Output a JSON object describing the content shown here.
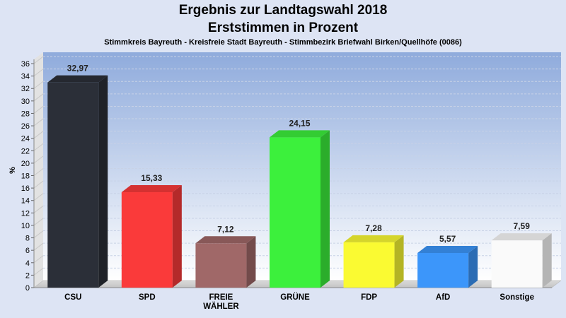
{
  "chart_data": {
    "type": "bar",
    "title": "Ergebnis zur Landtagswahl 2018",
    "subtitle": "Erststimmen in Prozent",
    "caption": "Stimmkreis Bayreuth - Kreisfreie Stadt Bayreuth - Stimmbezirk Briefwahl Birken/Quellhöfe (0086)",
    "ylabel": "%",
    "ylim": [
      0,
      36
    ],
    "yticks": [
      0,
      2,
      4,
      6,
      8,
      10,
      12,
      14,
      16,
      18,
      20,
      22,
      24,
      26,
      28,
      30,
      32,
      34,
      36
    ],
    "grid": true,
    "categories": [
      [
        "CSU"
      ],
      [
        "SPD"
      ],
      [
        "FREIE",
        "WÄHLER"
      ],
      [
        "GRÜNE"
      ],
      [
        "FDP"
      ],
      [
        "AfD"
      ],
      [
        "Sonstige"
      ]
    ],
    "values": [
      32.97,
      15.33,
      7.12,
      24.15,
      7.28,
      5.57,
      7.59
    ],
    "value_labels": [
      "32,97",
      "15,33",
      "7,12",
      "24,15",
      "7,28",
      "5,57",
      "7,59"
    ],
    "colors": [
      "#2b2f38",
      "#fa3a3a",
      "#a06868",
      "#3cf03c",
      "#fafa32",
      "#3c96fa",
      "#fafafa"
    ]
  }
}
